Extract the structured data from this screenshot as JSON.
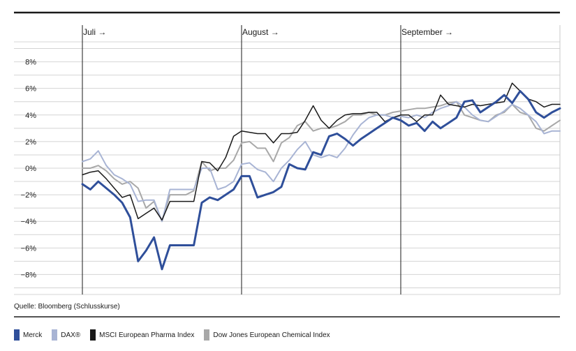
{
  "source_note": "Quelle: Bloomberg (Schlusskurse)",
  "chart_data": {
    "type": "line",
    "title": "",
    "xlabel": "",
    "ylabel": "",
    "ylim": [
      -9.5,
      9.5
    ],
    "yticks": [
      8,
      6,
      4,
      2,
      0,
      -2,
      -4,
      -6,
      -8
    ],
    "ytick_labels": [
      "8%",
      "6%",
      "4%",
      "2%",
      "0%",
      "−2%",
      "−4%",
      "−6%",
      "−8%"
    ],
    "xlim": [
      0,
      60
    ],
    "months": [
      {
        "label": "Juli →",
        "start": 0
      },
      {
        "label": "August →",
        "start": 20
      },
      {
        "label": "September →",
        "start": 40
      }
    ],
    "grid": true,
    "legend_position": "bottom",
    "series": [
      {
        "name": "Dow Jones European Chemical Index",
        "color": "#a8a8a8",
        "width": 2,
        "values": [
          0.0,
          0.0,
          0.2,
          -0.2,
          -0.8,
          -1.2,
          -1.0,
          -1.5,
          -3.0,
          -2.5,
          -4.0,
          -2.0,
          -2.0,
          -2.0,
          -1.7,
          0.5,
          -0.2,
          0.0,
          0.0,
          0.6,
          1.9,
          2.0,
          1.5,
          1.5,
          0.5,
          1.9,
          2.3,
          3.2,
          3.5,
          2.8,
          3.0,
          3.0,
          3.2,
          3.5,
          4.0,
          4.0,
          4.2,
          4.0,
          4.0,
          4.2,
          4.3,
          4.4,
          4.5,
          4.5,
          4.6,
          4.7,
          4.9,
          5.0,
          4.0,
          3.8,
          3.6,
          3.5,
          4.0,
          4.2,
          4.8,
          4.2,
          4.0,
          3.0,
          2.8,
          3.2,
          3.6
        ]
      },
      {
        "name": "DAX®",
        "color": "#a8b4d4",
        "width": 2,
        "values": [
          0.5,
          0.7,
          1.3,
          0.2,
          -0.5,
          -0.8,
          -1.2,
          -2.5,
          -2.4,
          -2.4,
          -4.0,
          -1.6,
          -1.6,
          -1.6,
          -1.6,
          0.0,
          0.0,
          -1.6,
          -1.4,
          -1.0,
          0.3,
          0.4,
          -0.1,
          -0.3,
          -1.0,
          0.0,
          0.6,
          1.4,
          2.0,
          1.0,
          0.8,
          1.0,
          0.8,
          1.5,
          2.5,
          3.3,
          3.8,
          4.0,
          4.0,
          3.8,
          3.9,
          3.8,
          4.0,
          3.8,
          4.2,
          4.5,
          4.7,
          5.0,
          4.6,
          4.0,
          3.6,
          3.5,
          3.9,
          4.3,
          4.8,
          4.5,
          4.0,
          3.5,
          2.6,
          2.8,
          2.8
        ]
      },
      {
        "name": "MSCI European Pharma Index",
        "color": "#1a1a1a",
        "width": 1.5,
        "values": [
          -0.5,
          -0.3,
          -0.2,
          -0.8,
          -1.5,
          -2.2,
          -2.0,
          -3.8,
          -3.4,
          -3.0,
          -3.9,
          -2.5,
          -2.5,
          -2.5,
          -2.5,
          0.5,
          0.4,
          -0.2,
          0.8,
          2.4,
          2.8,
          2.7,
          2.6,
          2.6,
          1.9,
          2.6,
          2.6,
          2.7,
          3.6,
          4.7,
          3.6,
          3.0,
          3.6,
          4.0,
          4.1,
          4.1,
          4.2,
          4.2,
          3.5,
          3.8,
          4.0,
          4.0,
          3.5,
          4.0,
          4.0,
          5.5,
          4.8,
          4.7,
          4.6,
          4.8,
          4.7,
          4.8,
          4.9,
          5.0,
          6.4,
          5.8,
          5.2,
          5.0,
          4.6,
          4.8,
          4.8
        ]
      },
      {
        "name": "Merck",
        "color": "#2f4f9a",
        "width": 3,
        "values": [
          -1.2,
          -1.6,
          -1.0,
          -1.5,
          -2.0,
          -2.6,
          -3.7,
          -7.0,
          -6.2,
          -5.2,
          -7.6,
          -5.8,
          -5.8,
          -5.8,
          -5.8,
          -2.6,
          -2.2,
          -2.4,
          -2.0,
          -1.6,
          -0.6,
          -0.6,
          -2.2,
          -2.0,
          -1.8,
          -1.4,
          0.3,
          0.0,
          -0.1,
          1.2,
          1.0,
          2.4,
          2.6,
          2.2,
          1.7,
          2.2,
          2.6,
          3.0,
          3.4,
          3.8,
          3.6,
          3.2,
          3.4,
          2.8,
          3.5,
          3.0,
          3.4,
          3.8,
          5.0,
          5.1,
          4.2,
          4.6,
          5.0,
          5.5,
          4.9,
          5.8,
          5.2,
          4.2,
          3.8,
          4.2,
          4.5
        ]
      }
    ],
    "legend": [
      {
        "name": "Merck",
        "color": "#2f4f9a"
      },
      {
        "name": "DAX®",
        "color": "#a8b4d4"
      },
      {
        "name": "MSCI European Pharma Index",
        "color": "#1a1a1a"
      },
      {
        "name": "Dow Jones European Chemical Index",
        "color": "#a8a8a8"
      }
    ]
  }
}
